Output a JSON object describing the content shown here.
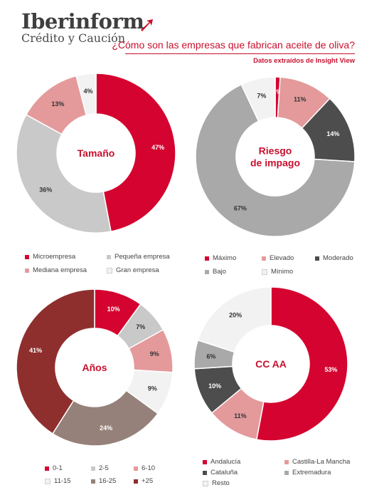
{
  "brand": {
    "name": "Iberinform",
    "tagline": "Crédito y Caución"
  },
  "headline": "¿Cómo son las empresas que fabrican aceite de oliva?",
  "source": "Datos extraídos de Insight View",
  "colors": {
    "red": "#d4032f",
    "lightgray": "#c9c9c9",
    "pink": "#e49a9b",
    "white": "#f2f2f2",
    "darkgray": "#4d4d4d",
    "midgray": "#a9a9a9",
    "darkred": "#8e2f2e",
    "taupe": "#958179"
  },
  "chart_data": [
    {
      "type": "pie",
      "title": "Tamaño",
      "labels": [
        "Microempresa",
        "Pequeña empresa",
        "Mediana empresa",
        "Gran empresa"
      ],
      "values": [
        47,
        36,
        13,
        4
      ],
      "value_labels": [
        "47%",
        "36%",
        "13%",
        "4%"
      ],
      "colors": [
        "#d4032f",
        "#c9c9c9",
        "#e49a9b",
        "#f2f2f2"
      ]
    },
    {
      "type": "pie",
      "title": "Riesgo de impago",
      "labels": [
        "Máximo",
        "Elevado",
        "Moderado",
        "Bajo",
        "Mínimo"
      ],
      "values": [
        1,
        11,
        14,
        67,
        7
      ],
      "value_labels": [
        "1%",
        "11%",
        "14%",
        "67%",
        "7%"
      ],
      "colors": [
        "#d4032f",
        "#e49a9b",
        "#4d4d4d",
        "#a9a9a9",
        "#f2f2f2"
      ]
    },
    {
      "type": "pie",
      "title": "Años",
      "labels": [
        "0-1",
        "2-5",
        "6-10",
        "11-15",
        "16-25",
        "+25"
      ],
      "values": [
        10,
        7,
        9,
        9,
        24,
        41
      ],
      "value_labels": [
        "10%",
        "7%",
        "9%",
        "9%",
        "24%",
        "41%"
      ],
      "colors": [
        "#d4032f",
        "#c9c9c9",
        "#e49a9b",
        "#f2f2f2",
        "#958179",
        "#8e2f2e"
      ]
    },
    {
      "type": "pie",
      "title": "CC AA",
      "labels": [
        "Andalucía",
        "Castilla-La Mancha",
        "Cataluña",
        "Extremadura",
        "Resto"
      ],
      "values": [
        53,
        11,
        10,
        6,
        20
      ],
      "value_labels": [
        "53%",
        "11%",
        "10%",
        "6%",
        "20%"
      ],
      "colors": [
        "#d4032f",
        "#e49a9b",
        "#4d4d4d",
        "#a9a9a9",
        "#f2f2f2"
      ]
    }
  ]
}
